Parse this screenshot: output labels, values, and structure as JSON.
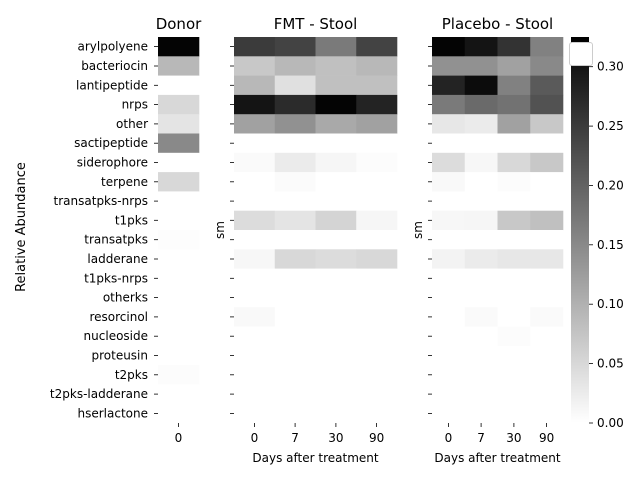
{
  "chart_data": {
    "type": "heatmap",
    "ylabel": "Relative Abundance",
    "rows": [
      "arylpolyene",
      "bacteriocin",
      "lantipeptide",
      "nrps",
      "other",
      "sactipeptide",
      "siderophore",
      "terpene",
      "transatpks-nrps",
      "t1pks",
      "transatpks",
      "ladderane",
      "t1pks-nrps",
      "otherks",
      "resorcinol",
      "nucleoside",
      "proteusin",
      "t2pks",
      "t2pks-ladderane",
      "hserlactone"
    ],
    "panels": [
      {
        "title": "Donor",
        "xlabel": "",
        "ylabel": "",
        "columns": [
          "0"
        ],
        "values": [
          [
            0.32
          ],
          [
            0.09
          ],
          [
            0.0
          ],
          [
            0.05
          ],
          [
            0.035
          ],
          [
            0.15
          ],
          [
            0.0
          ],
          [
            0.05
          ],
          [
            0.0
          ],
          [
            0.0
          ],
          [
            0.003
          ],
          [
            0.0
          ],
          [
            0.0
          ],
          [
            0.0
          ],
          [
            0.0
          ],
          [
            0.0
          ],
          [
            0.0
          ],
          [
            0.004
          ],
          [
            0.0
          ],
          [
            0.0
          ]
        ]
      },
      {
        "title": "FMT - Stool",
        "xlabel": "Days after treatment",
        "ylabel": "sm",
        "columns": [
          "0",
          "7",
          "30",
          "90"
        ],
        "values": [
          [
            0.25,
            0.24,
            0.17,
            0.24
          ],
          [
            0.07,
            0.09,
            0.08,
            0.09
          ],
          [
            0.09,
            0.04,
            0.08,
            0.08
          ],
          [
            0.3,
            0.27,
            0.32,
            0.28
          ],
          [
            0.12,
            0.14,
            0.11,
            0.12
          ],
          [
            0.0,
            0.0,
            0.0,
            0.0
          ],
          [
            0.006,
            0.025,
            0.012,
            0.004
          ],
          [
            0.0,
            0.005,
            0.0,
            0.0
          ],
          [
            0.0,
            0.0,
            0.0,
            0.0
          ],
          [
            0.045,
            0.035,
            0.055,
            0.012
          ],
          [
            0.0,
            0.0,
            0.0,
            0.0
          ],
          [
            0.01,
            0.05,
            0.045,
            0.05
          ],
          [
            0.0,
            0.0,
            0.0,
            0.0
          ],
          [
            0.0,
            0.0,
            0.0,
            0.0
          ],
          [
            0.008,
            0.0,
            0.0,
            0.0
          ],
          [
            0.0,
            0.0,
            0.0,
            0.0
          ],
          [
            0.0,
            0.0,
            0.0,
            0.0
          ],
          [
            0.0,
            0.0,
            0.0,
            0.0
          ],
          [
            0.0,
            0.0,
            0.0,
            0.0
          ],
          [
            0.0,
            0.0,
            0.0,
            0.0
          ]
        ]
      },
      {
        "title": "Placebo - Stool",
        "xlabel": "Days after treatment",
        "ylabel": "sm",
        "columns": [
          "0",
          "7",
          "30",
          "90"
        ],
        "values": [
          [
            0.32,
            0.3,
            0.26,
            0.16
          ],
          [
            0.14,
            0.14,
            0.12,
            0.15
          ],
          [
            0.28,
            0.31,
            0.16,
            0.21
          ],
          [
            0.17,
            0.19,
            0.18,
            0.22
          ],
          [
            0.03,
            0.025,
            0.12,
            0.07
          ],
          [
            0.0,
            0.0,
            0.0,
            0.0
          ],
          [
            0.045,
            0.01,
            0.05,
            0.07
          ],
          [
            0.008,
            0.0,
            0.004,
            0.0
          ],
          [
            0.0,
            0.0,
            0.0,
            0.0
          ],
          [
            0.01,
            0.012,
            0.07,
            0.08
          ],
          [
            0.0,
            0.0,
            0.0,
            0.0
          ],
          [
            0.015,
            0.025,
            0.03,
            0.03
          ],
          [
            0.0,
            0.0,
            0.0,
            0.0
          ],
          [
            0.0,
            0.0,
            0.0,
            0.0
          ],
          [
            0.0,
            0.006,
            0.0,
            0.006
          ],
          [
            0.0,
            0.0,
            0.004,
            0.0
          ],
          [
            0.0,
            0.0,
            0.0,
            0.0
          ],
          [
            0.0,
            0.0,
            0.0,
            0.0
          ],
          [
            0.0,
            0.0,
            0.0,
            0.0
          ],
          [
            0.0,
            0.0,
            0.0,
            0.0
          ]
        ]
      }
    ],
    "colorbar": {
      "min": 0.0,
      "max": 0.325,
      "colormap": "Greys",
      "ticks": [
        0.0,
        0.05,
        0.1,
        0.15,
        0.2,
        0.25,
        0.3
      ],
      "tick_labels": [
        "0.00",
        "0.05",
        "0.10",
        "0.15",
        "0.20",
        "0.25",
        "0.30"
      ]
    },
    "legend": {
      "location": "upper right",
      "entries": []
    }
  }
}
